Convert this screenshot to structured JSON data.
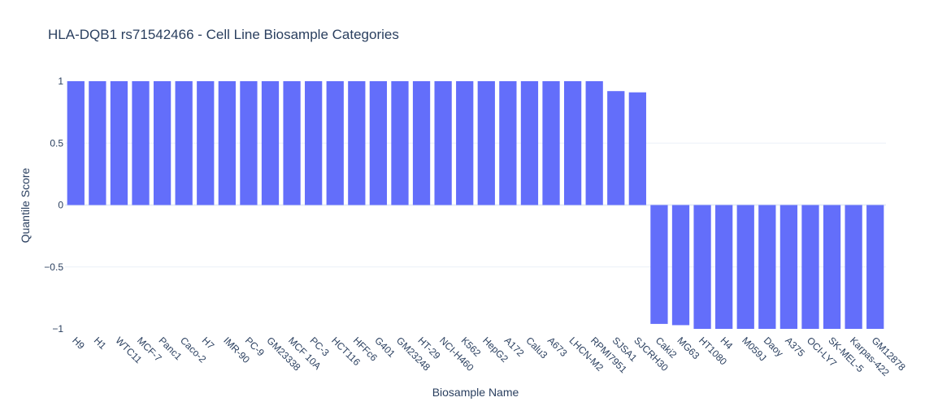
{
  "chart_data": {
    "type": "bar",
    "title": "HLA-DQB1 rs71542466 - Cell Line Biosample Categories",
    "xlabel": "Biosample Name",
    "ylabel": "Quantile Score",
    "ylim": [
      -1,
      1
    ],
    "yticks": [
      1,
      0.5,
      0,
      -0.5,
      -1
    ],
    "ytick_labels": [
      "1",
      "0.5",
      "0",
      "−0.5",
      "−1"
    ],
    "grid": true,
    "bar_color": "#636efa",
    "categories": [
      "H9",
      "H1",
      "WTC11",
      "MCF-7",
      "Panc1",
      "Caco-2",
      "H7",
      "IMR-90",
      "PC-9",
      "GM23338",
      "MCF 10A",
      "PC-3",
      "HCT116",
      "HFFc6",
      "G401",
      "GM23248",
      "HT-29",
      "NCI-H460",
      "K562",
      "HepG2",
      "A172",
      "Calu3",
      "A673",
      "LHCN-M2",
      "RPMI7951",
      "SJSA1",
      "SJCRH30",
      "Caki2",
      "MG63",
      "HT1080",
      "H4",
      "M059J",
      "Daoy",
      "A375",
      "OCI-LY7",
      "SK-MEL-5",
      "Karpas-422",
      "GM12878"
    ],
    "values": [
      1,
      1,
      1,
      1,
      1,
      1,
      1,
      1,
      1,
      1,
      1,
      1,
      1,
      1,
      1,
      1,
      1,
      1,
      1,
      1,
      1,
      1,
      1,
      1,
      1,
      0.92,
      0.91,
      -0.96,
      -0.97,
      -1,
      -1,
      -1,
      -1,
      -1,
      -1,
      -1,
      -1,
      -1
    ]
  }
}
